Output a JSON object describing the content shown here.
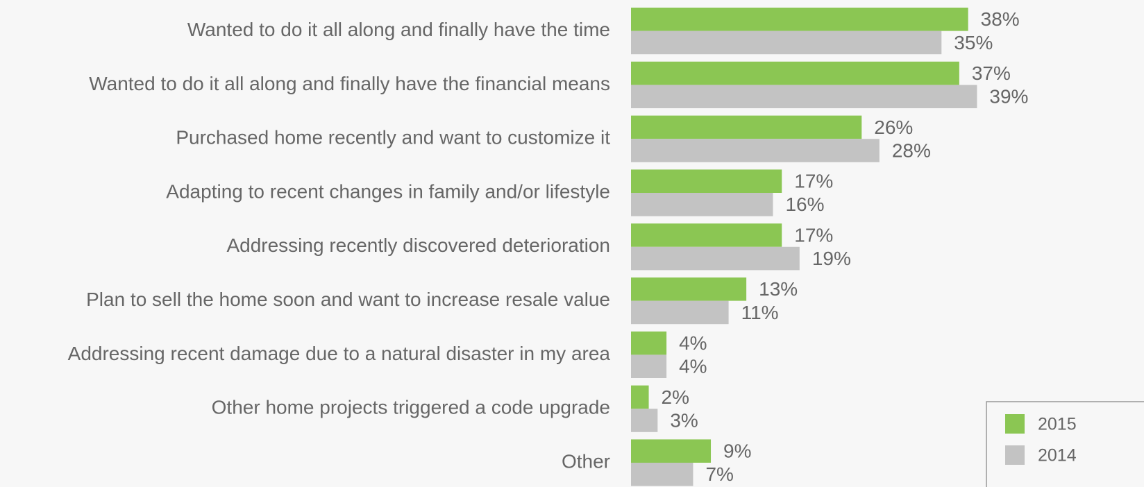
{
  "chart_data": {
    "type": "bar",
    "orientation": "horizontal",
    "categories": [
      "Wanted to do it all along and finally have the time",
      "Wanted to do it all along and finally have the financial means",
      "Purchased home recently and want to customize it",
      "Adapting to recent changes in family and/or lifestyle",
      "Addressing recently discovered deterioration",
      "Plan to sell the home soon and want to increase resale value",
      "Addressing recent damage due to a natural disaster in my area",
      "Other home projects triggered a code upgrade",
      "Other"
    ],
    "series": [
      {
        "name": "2015",
        "color": "#8bc653",
        "values": [
          38,
          37,
          26,
          17,
          17,
          13,
          4,
          2,
          9
        ],
        "value_labels": [
          "38%",
          "37%",
          "26%",
          "17%",
          "17%",
          "13%",
          "4%",
          "2%",
          "9%"
        ]
      },
      {
        "name": "2014",
        "color": "#c3c3c3",
        "values": [
          35,
          39,
          28,
          16,
          19,
          11,
          4,
          3,
          7
        ],
        "value_labels": [
          "35%",
          "39%",
          "28%",
          "16%",
          "19%",
          "11%",
          "4%",
          "3%",
          "7%"
        ]
      }
    ],
    "legend": "bottom-right"
  }
}
